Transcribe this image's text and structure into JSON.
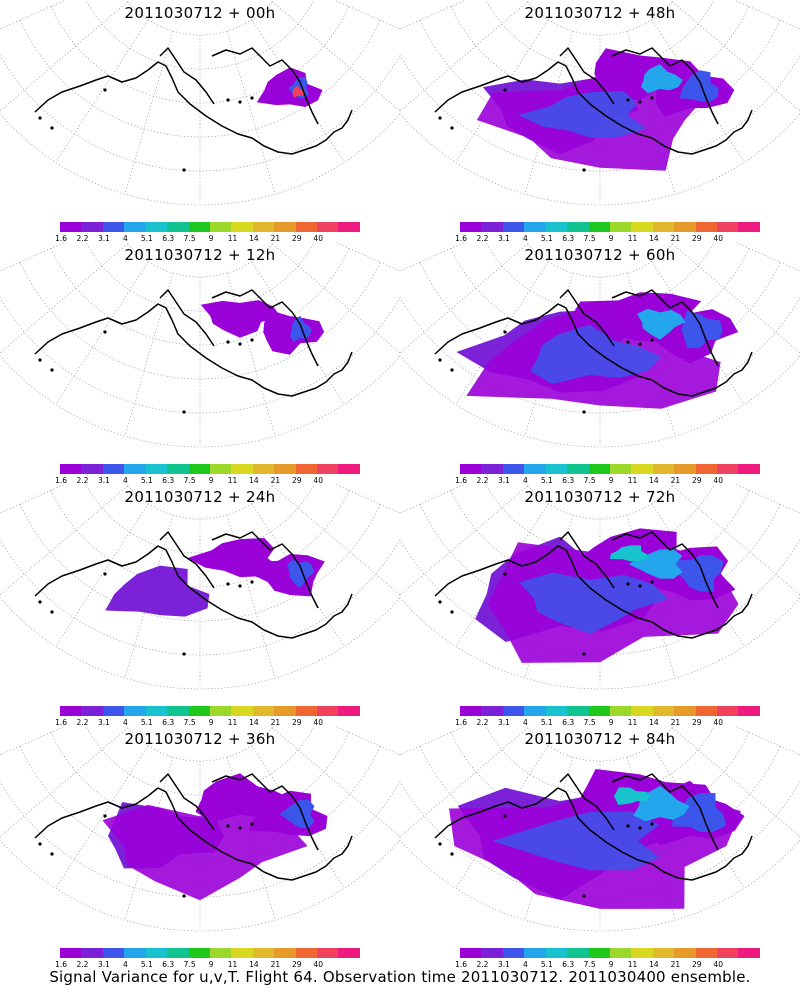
{
  "footer": "Signal Variance for u,v,T. Flight 64. Observation time 2011030712. 2011030400 ensemble.",
  "colorbar": {
    "colors": [
      "#9a00d8",
      "#7b22d8",
      "#3c55ea",
      "#23a6ec",
      "#18c3cf",
      "#10c48f",
      "#1fc81f",
      "#9bd82a",
      "#d8d820",
      "#e2b82c",
      "#e69a2a",
      "#f06633",
      "#f04060",
      "#ee1a7f"
    ],
    "labels": [
      "1.6",
      "2.2",
      "3.1",
      "4",
      "5.1",
      "6.3",
      "7.5",
      "9",
      "11",
      "14",
      "21",
      "29",
      "40"
    ]
  },
  "panels": [
    {
      "title": "2011030712 + 00h",
      "intensity": 0.05
    },
    {
      "title": "2011030712 + 48h",
      "intensity": 0.55
    },
    {
      "title": "2011030712 + 12h",
      "intensity": 0.12
    },
    {
      "title": "2011030712 + 60h",
      "intensity": 0.7
    },
    {
      "title": "2011030712 + 24h",
      "intensity": 0.25
    },
    {
      "title": "2011030712 + 72h",
      "intensity": 0.82
    },
    {
      "title": "2011030712 + 36h",
      "intensity": 0.4
    },
    {
      "title": "2011030712 + 84h",
      "intensity": 0.95
    }
  ]
}
